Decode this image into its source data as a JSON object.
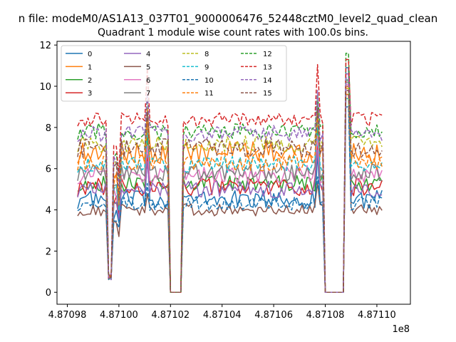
{
  "chart_data": {
    "type": "line",
    "suptitle": "n file: modeM0/AS1A13_037T01_9000006476_52448cztM0_level2_quad_clean",
    "title": "Quadrant 1 module wise count rates with 100.0s bins.",
    "xlabel": "",
    "ylabel": "",
    "x_offset_label": "1e8",
    "xlim": [
      4.870976,
      4.871113
    ],
    "ylim": [
      -0.58,
      12.18
    ],
    "xticks": [
      4.87098,
      4.871,
      4.87102,
      4.87104,
      4.87106,
      4.87108,
      4.8711
    ],
    "yticks": [
      0,
      2,
      4,
      6,
      8,
      10,
      12
    ],
    "grid": false,
    "legend_position": "top-left",
    "legend_columns": 4,
    "series": [
      {
        "name": "0",
        "color": "#1f77b4",
        "dash": "solid",
        "base": 4.5,
        "amp": 0.45,
        "peak1": 6.8,
        "peak2": 10.9
      },
      {
        "name": "1",
        "color": "#ff7f0e",
        "dash": "solid",
        "base": 6.8,
        "amp": 0.55,
        "peak1": 9.0,
        "peak2": 9.9
      },
      {
        "name": "2",
        "color": "#2ca02c",
        "dash": "solid",
        "base": 5.3,
        "amp": 0.4,
        "peak1": 7.9,
        "peak2": 10.3
      },
      {
        "name": "3",
        "color": "#d62728",
        "dash": "solid",
        "base": 5.1,
        "amp": 0.45,
        "peak1": 7.1,
        "peak2": 10.0
      },
      {
        "name": "4",
        "color": "#9467bd",
        "dash": "solid",
        "base": 5.0,
        "amp": 0.4,
        "peak1": 6.9,
        "peak2": 10.6
      },
      {
        "name": "5",
        "color": "#8c564b",
        "dash": "solid",
        "base": 4.0,
        "amp": 0.3,
        "peak1": 5.3,
        "peak2": 9.6
      },
      {
        "name": "6",
        "color": "#e377c2",
        "dash": "solid",
        "base": 5.7,
        "amp": 0.45,
        "peak1": 7.6,
        "peak2": 10.1
      },
      {
        "name": "7",
        "color": "#7f7f7f",
        "dash": "solid",
        "base": 5.8,
        "amp": 0.4,
        "peak1": 9.2,
        "peak2": 10.2
      },
      {
        "name": "8",
        "color": "#bcbd22",
        "dash": "dashed",
        "base": 7.2,
        "amp": 0.4,
        "peak1": 8.8,
        "peak2": 10.0
      },
      {
        "name": "9",
        "color": "#17becf",
        "dash": "dashed",
        "base": 6.2,
        "amp": 0.4,
        "peak1": 8.2,
        "peak2": 9.4
      },
      {
        "name": "10",
        "color": "#1f77b4",
        "dash": "dashed",
        "base": 4.3,
        "amp": 0.35,
        "peak1": 5.6,
        "peak2": 9.0
      },
      {
        "name": "11",
        "color": "#ff7f0e",
        "dash": "dashed",
        "base": 6.4,
        "amp": 0.5,
        "peak1": 8.6,
        "peak2": 9.6
      },
      {
        "name": "12",
        "color": "#2ca02c",
        "dash": "dashed",
        "base": 7.8,
        "amp": 0.4,
        "peak1": 9.6,
        "peak2": 11.6
      },
      {
        "name": "13",
        "color": "#d62728",
        "dash": "dashed",
        "base": 8.4,
        "amp": 0.35,
        "peak1": 11.05,
        "peak2": 11.3
      },
      {
        "name": "14",
        "color": "#9467bd",
        "dash": "dashed",
        "base": 7.7,
        "amp": 0.4,
        "peak1": 9.8,
        "peak2": 10.4
      },
      {
        "name": "15",
        "color": "#8c564b",
        "dash": "dashed",
        "base": 7.0,
        "amp": 0.45,
        "peak1": 8.9,
        "peak2": 9.8
      }
    ],
    "segments": [
      {
        "x0": 4.870984,
        "x1": 4.871002
      },
      {
        "x0": 4.871002,
        "x1": 4.871007
      },
      {
        "x0": 4.871007,
        "x1": 4.871103
      }
    ]
  }
}
